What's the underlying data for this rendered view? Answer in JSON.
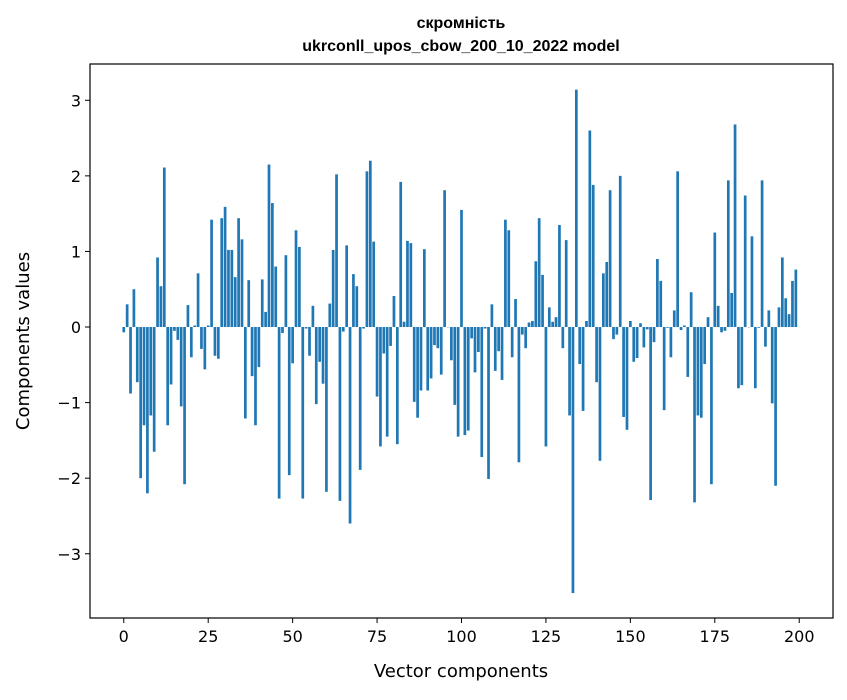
{
  "chart_data": {
    "type": "bar",
    "title": "скромність",
    "subtitle": "ukrconll_upos_cbow_200_10_2022 model",
    "xlabel": "Vector components",
    "ylabel": "Components values",
    "xlim": [
      -10,
      210
    ],
    "ylim": [
      -3.85,
      3.48
    ],
    "xticks": [
      0,
      25,
      50,
      75,
      100,
      125,
      150,
      175,
      200
    ],
    "yticks": [
      -3,
      -2,
      -1,
      0,
      1,
      2,
      3
    ],
    "ytick_labels": [
      "−3",
      "−2",
      "−1",
      "0",
      "1",
      "2",
      "3"
    ],
    "grid": false,
    "bar_color": "#1f77b4",
    "values": [
      -0.07,
      0.3,
      -0.88,
      0.5,
      -0.73,
      -2.0,
      -1.3,
      -2.2,
      -1.17,
      -1.65,
      0.92,
      0.54,
      2.11,
      -1.3,
      -0.76,
      -0.05,
      -0.17,
      -1.05,
      -2.08,
      0.29,
      -0.4,
      0.02,
      0.71,
      -0.29,
      -0.56,
      0.02,
      1.42,
      -0.38,
      -0.42,
      1.44,
      1.59,
      1.02,
      1.02,
      0.66,
      1.44,
      1.16,
      -1.21,
      0.62,
      -0.65,
      -1.3,
      -0.53,
      0.63,
      0.2,
      2.15,
      1.64,
      0.8,
      -2.27,
      -0.08,
      0.95,
      -1.96,
      -0.48,
      1.28,
      1.06,
      -2.27,
      -0.02,
      -0.38,
      0.28,
      -1.02,
      -0.46,
      -0.75,
      -2.18,
      0.31,
      1.02,
      2.02,
      -2.3,
      -0.06,
      1.08,
      -2.6,
      0.7,
      0.54,
      -1.89,
      -0.02,
      2.06,
      2.2,
      1.13,
      -0.92,
      -1.58,
      -0.35,
      -1.45,
      -0.25,
      0.41,
      -1.55,
      1.92,
      0.07,
      1.14,
      1.11,
      -0.99,
      -1.2,
      -0.84,
      1.03,
      -0.84,
      -0.68,
      -0.24,
      -0.28,
      -0.63,
      1.81,
      0.0,
      -0.44,
      -1.03,
      -1.45,
      1.55,
      -1.43,
      -1.37,
      -0.15,
      -0.6,
      -0.33,
      -1.72,
      -0.02,
      -2.01,
      0.3,
      -0.58,
      -0.32,
      -0.7,
      1.42,
      1.28,
      -0.4,
      0.37,
      -1.79,
      -0.1,
      -0.28,
      0.06,
      0.08,
      0.87,
      1.44,
      0.69,
      -1.58,
      0.26,
      0.07,
      0.13,
      1.35,
      -0.28,
      1.15,
      -1.17,
      -3.52,
      3.14,
      -0.49,
      -1.11,
      0.08,
      2.6,
      1.88,
      -0.73,
      -1.77,
      0.71,
      0.86,
      1.81,
      -0.16,
      -0.1,
      2.0,
      -1.19,
      -1.36,
      0.08,
      -0.46,
      -0.41,
      0.05,
      -0.27,
      -0.03,
      -2.29,
      -0.2,
      0.9,
      0.61,
      -1.1,
      -0.01,
      -0.4,
      0.22,
      2.06,
      -0.04,
      0.02,
      -0.66,
      0.46,
      -2.32,
      -1.17,
      -1.2,
      -0.49,
      0.13,
      -2.08,
      1.25,
      0.28,
      -0.07,
      -0.05,
      1.94,
      0.45,
      2.68,
      -0.81,
      -0.77,
      1.74,
      0.0,
      1.2,
      -0.81,
      -0.01,
      1.94,
      -0.26,
      0.22,
      -1.01,
      -2.1,
      0.26,
      0.92,
      0.38,
      0.17,
      0.61,
      0.76
    ]
  }
}
